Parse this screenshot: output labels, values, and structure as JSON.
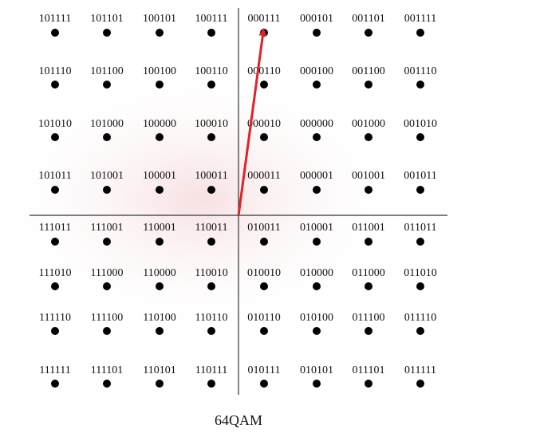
{
  "constellation": {
    "rows": [
      [
        "101111",
        "101101",
        "100101",
        "100111",
        "000111",
        "000101",
        "001101",
        "001111"
      ],
      [
        "101110",
        "101100",
        "100100",
        "100110",
        "000110",
        "000100",
        "001100",
        "001110"
      ],
      [
        "101010",
        "101000",
        "100000",
        "100010",
        "000010",
        "000000",
        "001000",
        "001010"
      ],
      [
        "101011",
        "101001",
        "100001",
        "100011",
        "000011",
        "000001",
        "001001",
        "001011"
      ],
      [
        "111011",
        "111001",
        "110001",
        "110011",
        "010011",
        "010001",
        "011001",
        "011011"
      ],
      [
        "111010",
        "111000",
        "110000",
        "110010",
        "010010",
        "010000",
        "011000",
        "011010"
      ],
      [
        "111110",
        "111100",
        "110100",
        "110110",
        "010110",
        "010100",
        "011100",
        "011110"
      ],
      [
        "111111",
        "111101",
        "110101",
        "110111",
        "010111",
        "010101",
        "011101",
        "011111"
      ]
    ]
  },
  "caption": "64QAM"
}
